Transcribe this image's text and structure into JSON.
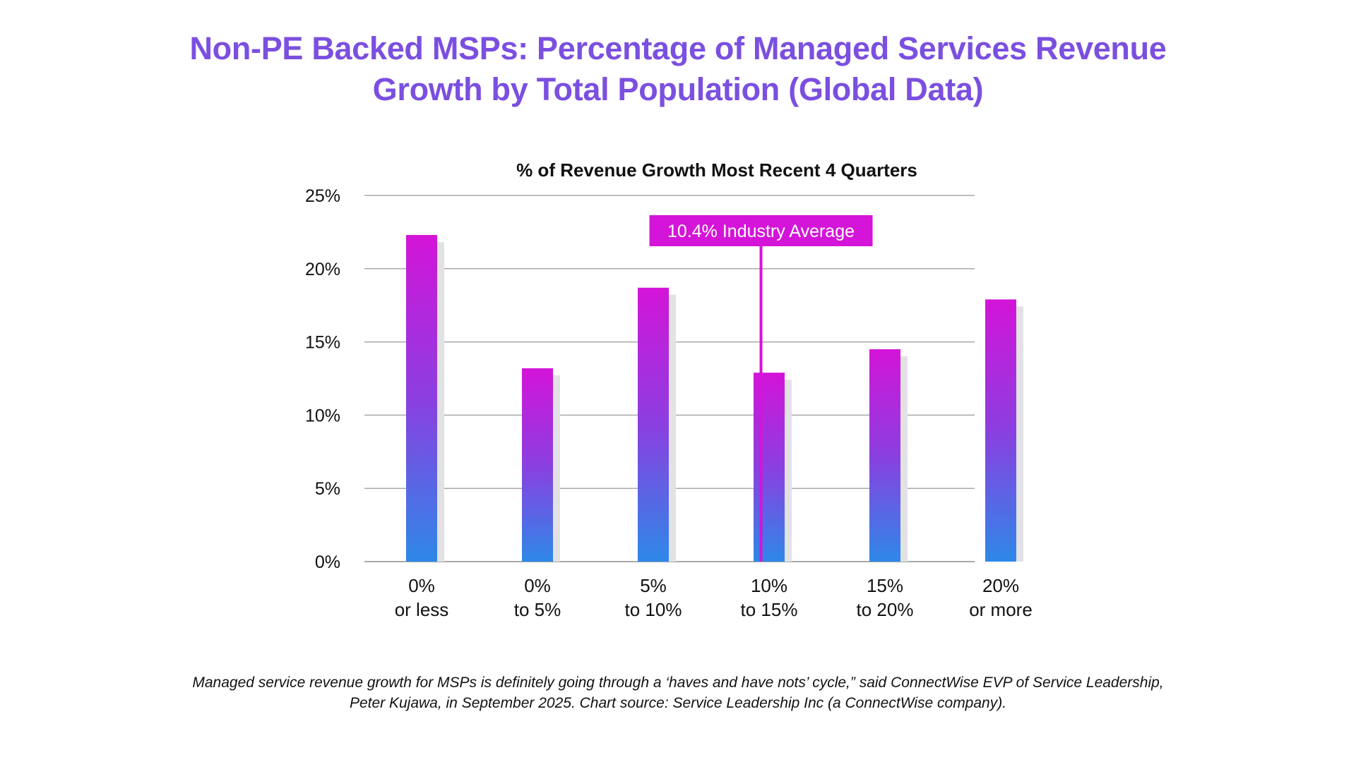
{
  "header": {
    "title_lines": [
      "Non-PE Backed MSPs: Percentage of Managed Services Revenue",
      "Growth by Total Population (Global Data)"
    ]
  },
  "footer": {
    "caption_lines": [
      "Managed service revenue growth for MSPs is definitely going through a ‘haves and have nots’ cycle,” said ConnectWise EVP of Service Leadership,",
      "Peter Kujawa, in September 2025. Chart source: Service Leadership Inc (a ConnectWise company)."
    ]
  },
  "colors": {
    "title": "#7b4fe0",
    "bar_top": "#d414d8",
    "bar_mid": "#8b3fe0",
    "bar_bottom": "#2e88e8",
    "bar_shadow": "#e2e2e4",
    "gridline": "#a9a9a9",
    "annotation": "#d414d8",
    "annotation_text": "#ffffff",
    "axis_text": "#111111"
  },
  "chart_data": {
    "type": "bar",
    "title": "% of Revenue Growth Most Recent 4 Quarters",
    "xlabel": "",
    "ylabel": "",
    "categories": [
      [
        "0%",
        "or less"
      ],
      [
        "0%",
        "to 5%"
      ],
      [
        "5%",
        "to 10%"
      ],
      [
        "10%",
        "to 15%"
      ],
      [
        "15%",
        "to 20%"
      ],
      [
        "20%",
        "or more"
      ]
    ],
    "values": [
      22.3,
      13.2,
      18.7,
      12.9,
      14.5,
      17.9
    ],
    "value_unit": "%",
    "ylim": [
      0,
      25
    ],
    "yticks": [
      0,
      5,
      10,
      15,
      20,
      25
    ],
    "ytick_labels": [
      "0%",
      "5%",
      "10%",
      "15%",
      "20%",
      "25%"
    ],
    "grid": true,
    "legend": "none",
    "annotations": [
      {
        "label": "10.4% Industry Average",
        "value": 10.4,
        "category_position": 2.93
      }
    ]
  }
}
